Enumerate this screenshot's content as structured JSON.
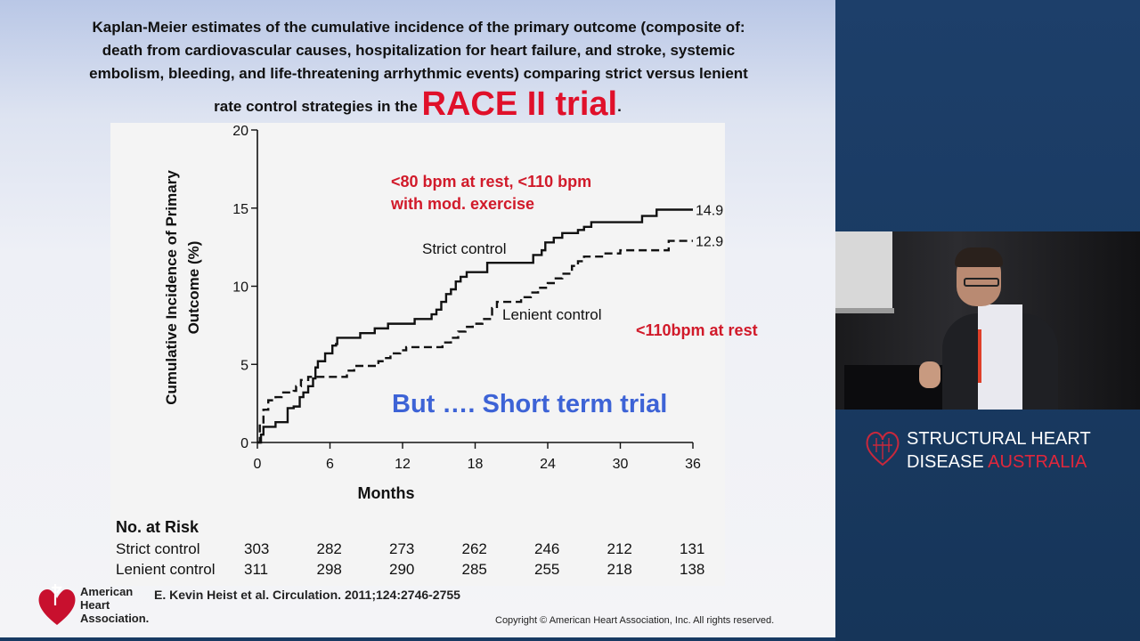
{
  "slide": {
    "title_lines": [
      "Kaplan-Meier estimates of the cumulative incidence of the primary outcome (composite of:",
      "death from cardiovascular causes, hospitalization for heart failure, and stroke, systemic",
      "embolism, bleeding, and life-threatening arrhythmic events) comparing strict versus lenient"
    ],
    "title_line4_prefix": "rate control strategies in the ",
    "title_highlight": "RACE II trial",
    "title_suffix": ".",
    "citation": "E. Kevin Heist et al. Circulation. 2011;124:2746-2755",
    "copyright": "Copyright © American Heart Association, Inc. All rights reserved.",
    "logo_text": [
      "American",
      "Heart",
      "Association."
    ]
  },
  "chart_data": {
    "type": "line",
    "xlabel": "Months",
    "ylabel": "Cumulative Incidence of Primary Outcome (%)",
    "ylabel_lines": [
      "Cumulative Incidence of Primary",
      "Outcome (%)"
    ],
    "xlim": [
      0,
      36
    ],
    "ylim": [
      0,
      20
    ],
    "xticks": [
      0,
      6,
      12,
      18,
      24,
      30,
      36
    ],
    "yticks": [
      0,
      5,
      10,
      15,
      20
    ],
    "grid": false,
    "series": [
      {
        "name": "Strict control",
        "style": "solid",
        "color": "#111111",
        "end_label": "14.9",
        "points": [
          [
            0,
            0
          ],
          [
            0.3,
            0.5
          ],
          [
            0.5,
            1.0
          ],
          [
            1.2,
            1.0
          ],
          [
            1.5,
            1.3
          ],
          [
            2.2,
            1.3
          ],
          [
            2.5,
            2.2
          ],
          [
            3,
            2.3
          ],
          [
            3.5,
            2.9
          ],
          [
            3.8,
            3.2
          ],
          [
            4.2,
            3.6
          ],
          [
            4.6,
            4.1
          ],
          [
            4.8,
            4.8
          ],
          [
            5.0,
            5.2
          ],
          [
            5.5,
            5.2
          ],
          [
            5.6,
            5.7
          ],
          [
            6.0,
            5.7
          ],
          [
            6.2,
            6.2
          ],
          [
            6.5,
            6.3
          ],
          [
            6.6,
            6.7
          ],
          [
            8.2,
            6.7
          ],
          [
            8.5,
            7.0
          ],
          [
            9.5,
            7.0
          ],
          [
            9.7,
            7.3
          ],
          [
            10.5,
            7.3
          ],
          [
            10.8,
            7.6
          ],
          [
            12.8,
            7.6
          ],
          [
            13.0,
            7.9
          ],
          [
            14.2,
            7.9
          ],
          [
            14.4,
            8.2
          ],
          [
            14.8,
            8.5
          ],
          [
            15.2,
            9.0
          ],
          [
            15.6,
            9.5
          ],
          [
            16.0,
            9.8
          ],
          [
            16.4,
            10.3
          ],
          [
            16.8,
            10.6
          ],
          [
            17.3,
            10.9
          ],
          [
            18.8,
            10.9
          ],
          [
            19.0,
            11.5
          ],
          [
            22.6,
            11.5
          ],
          [
            22.8,
            12.0
          ],
          [
            23.5,
            12.3
          ],
          [
            23.8,
            12.8
          ],
          [
            24.5,
            13.1
          ],
          [
            25.2,
            13.4
          ],
          [
            26.5,
            13.6
          ],
          [
            27.0,
            13.8
          ],
          [
            27.6,
            14.1
          ],
          [
            31.5,
            14.1
          ],
          [
            31.8,
            14.5
          ],
          [
            32.8,
            14.5
          ],
          [
            33.0,
            14.9
          ],
          [
            36.0,
            14.9
          ]
        ]
      },
      {
        "name": "Lenient control",
        "style": "dashed",
        "color": "#111111",
        "end_label": "12.9",
        "points": [
          [
            0,
            0
          ],
          [
            0.2,
            1.2
          ],
          [
            0.5,
            2.1
          ],
          [
            0.9,
            2.7
          ],
          [
            1.5,
            2.9
          ],
          [
            2.0,
            3.2
          ],
          [
            3.0,
            3.3
          ],
          [
            3.2,
            3.6
          ],
          [
            3.6,
            4.0
          ],
          [
            4.2,
            4.2
          ],
          [
            7.2,
            4.2
          ],
          [
            7.4,
            4.6
          ],
          [
            8.0,
            4.9
          ],
          [
            9.8,
            4.9
          ],
          [
            10.0,
            5.2
          ],
          [
            10.5,
            5.4
          ],
          [
            11.0,
            5.7
          ],
          [
            11.8,
            5.9
          ],
          [
            12.3,
            6.1
          ],
          [
            15.0,
            6.1
          ],
          [
            15.3,
            6.4
          ],
          [
            16.0,
            6.7
          ],
          [
            16.6,
            7.1
          ],
          [
            17.2,
            7.4
          ],
          [
            17.8,
            7.6
          ],
          [
            18.6,
            7.9
          ],
          [
            19.4,
            8.6
          ],
          [
            19.8,
            9.0
          ],
          [
            21.4,
            9.0
          ],
          [
            21.8,
            9.3
          ],
          [
            22.6,
            9.6
          ],
          [
            23.2,
            9.9
          ],
          [
            24.0,
            10.2
          ],
          [
            24.5,
            10.5
          ],
          [
            25.2,
            10.8
          ],
          [
            26.0,
            11.3
          ],
          [
            26.5,
            11.6
          ],
          [
            27.0,
            11.9
          ],
          [
            28.3,
            11.9
          ],
          [
            28.6,
            12.1
          ],
          [
            30.0,
            12.3
          ],
          [
            33.7,
            12.3
          ],
          [
            34.0,
            12.9
          ],
          [
            36.0,
            12.9
          ]
        ]
      }
    ],
    "annotations": [
      {
        "text": "<80 bpm at rest, <110 bpm",
        "color": "#d11a2a"
      },
      {
        "text": "with  mod. exercise",
        "color": "#d11a2a"
      },
      {
        "text": "<110bpm at rest",
        "color": "#d11a2a"
      },
      {
        "text": "But …. Short term trial",
        "color": "#3d63d6"
      }
    ],
    "risk_table": {
      "title": "No. at Risk",
      "rows": [
        {
          "label": "Strict control",
          "values": [
            303,
            282,
            273,
            262,
            246,
            212,
            131
          ]
        },
        {
          "label": "Lenient control",
          "values": [
            311,
            298,
            290,
            285,
            255,
            218,
            138
          ]
        }
      ]
    }
  },
  "branding": {
    "line1": "STRUCTURAL HEART",
    "line2_prefix": "DISEASE ",
    "line2_accent": "AUSTRALIA",
    "accent_color": "#e0273c"
  }
}
